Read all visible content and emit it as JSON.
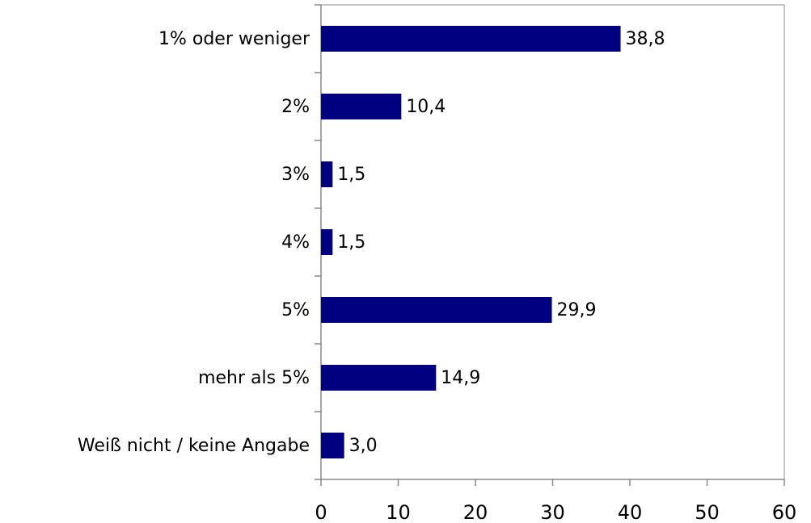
{
  "chart_data": {
    "type": "bar",
    "orientation": "horizontal",
    "categories": [
      "1% oder weniger",
      "2%",
      "3%",
      "4%",
      "5%",
      "mehr als 5%",
      "Weiß nicht / keine Angabe"
    ],
    "values": [
      38.8,
      10.4,
      1.5,
      1.5,
      29.9,
      14.9,
      3.0
    ],
    "value_labels": [
      "38,8",
      "10,4",
      "1,5",
      "1,5",
      "29,9",
      "14,9",
      "3,0"
    ],
    "color": "#000080",
    "xlim": [
      0,
      60
    ],
    "xticks": [
      0,
      10,
      20,
      30,
      40,
      50,
      60
    ],
    "grid": false
  }
}
